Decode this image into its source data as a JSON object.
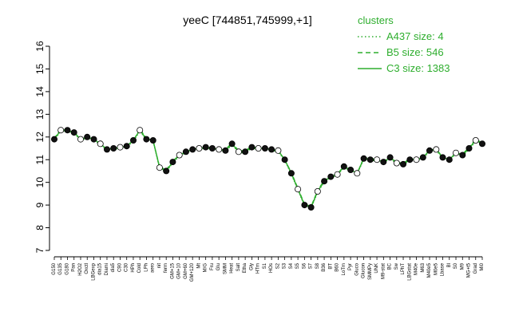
{
  "chart_data": {
    "type": "line",
    "title": "yeeC [744851,745999,+1]",
    "xlabel": "",
    "ylabel": "",
    "ylim": [
      7,
      16
    ],
    "yticks": [
      7,
      8,
      9,
      10,
      11,
      12,
      13,
      14,
      15,
      16
    ],
    "grid": false,
    "legend": {
      "title": "clusters",
      "placement": "top-right",
      "entries": [
        {
          "label": "A437 size: 4",
          "style": "dotted"
        },
        {
          "label": "B5 size: 546",
          "style": "dashed"
        },
        {
          "label": "C3 size: 1383",
          "style": "solid"
        }
      ]
    },
    "x_tick_labels": [
      "G150",
      "G135",
      "G180",
      "Pan",
      "H2O2",
      "Oxctl",
      "LBGexp",
      "dia15",
      "Diami",
      "dia5",
      "C90",
      "C30",
      "HPh",
      "Cold",
      "LPh",
      "aero",
      "nit",
      "ferm",
      "GM+15",
      "GM+10",
      "GM+60",
      "GM+120",
      "Mt",
      "M/G",
      "Fru",
      "Glu",
      "SMM",
      "Heat",
      "Salt",
      "Etha",
      "Gly",
      "HTm",
      "S1",
      "HOs",
      "S2",
      "S3",
      "S4",
      "S5",
      "S6",
      "S7",
      "S8",
      "B36",
      "BT",
      "B60",
      "LoTm",
      "Pyr",
      "Gluco",
      "Glucon",
      "SMMPy",
      "UNK",
      "M9-stat",
      "BC",
      "Sw",
      "LPhT",
      "LBGstat",
      "M40e",
      "M63",
      "M40e5",
      "M0e5",
      "Lbase",
      "Bl",
      "S0",
      "M9",
      "MG+t5",
      "Grad",
      "Mi0"
    ],
    "series": [
      {
        "style": "solid",
        "values": [
          11.9,
          12.3,
          12.3,
          12.2,
          11.9,
          12.0,
          11.9,
          11.7,
          11.45,
          11.5,
          11.55,
          11.6,
          11.85,
          12.3,
          11.9,
          11.85,
          10.65,
          10.5,
          10.9,
          11.2,
          11.35,
          11.45,
          11.5,
          11.55,
          11.5,
          11.45,
          11.4,
          11.7,
          11.35,
          11.35,
          11.55,
          11.5,
          11.5,
          11.45,
          11.4,
          11.0,
          10.4,
          9.7,
          9.0,
          8.9,
          9.6,
          10.05,
          10.25,
          10.35,
          10.7,
          10.55,
          10.4,
          11.05,
          11.0,
          11.0,
          10.9,
          11.1,
          10.85,
          10.8,
          11.0,
          11.0,
          11.1,
          11.4,
          11.45,
          11.1,
          11.0,
          11.3,
          11.2,
          11.5,
          11.85,
          11.7
        ]
      },
      {
        "style": "dashed",
        "values": [
          11.95,
          12.35,
          12.3,
          12.2,
          11.95,
          12.05,
          11.9,
          11.7,
          11.45,
          11.5,
          11.6,
          11.6,
          11.85,
          12.35,
          11.95,
          11.85,
          10.7,
          10.55,
          10.95,
          11.2,
          11.35,
          11.45,
          11.55,
          11.6,
          11.5,
          11.45,
          11.45,
          11.75,
          11.4,
          11.4,
          11.6,
          11.5,
          11.5,
          11.45,
          11.4,
          11.0,
          10.45,
          9.75,
          9.05,
          8.95,
          9.65,
          10.1,
          10.3,
          10.4,
          10.7,
          10.55,
          10.4,
          11.1,
          11.05,
          11.05,
          10.95,
          11.1,
          10.9,
          10.85,
          11.05,
          11.0,
          11.1,
          11.45,
          11.45,
          11.15,
          11.05,
          11.3,
          11.25,
          11.55,
          11.9,
          11.75
        ]
      },
      {
        "style": "dotted",
        "values": [
          11.85,
          12.25,
          12.25,
          12.15,
          11.85,
          11.95,
          11.85,
          11.65,
          11.4,
          11.45,
          11.5,
          11.55,
          11.8,
          12.25,
          11.85,
          11.8,
          10.6,
          10.45,
          10.85,
          11.15,
          11.3,
          11.4,
          11.45,
          11.5,
          11.45,
          11.4,
          11.35,
          11.65,
          11.3,
          11.3,
          11.5,
          11.45,
          11.45,
          11.4,
          11.35,
          10.95,
          10.35,
          9.65,
          8.95,
          8.85,
          9.55,
          10.0,
          10.2,
          10.3,
          10.65,
          10.5,
          10.35,
          11.0,
          10.95,
          10.95,
          10.85,
          11.05,
          10.8,
          10.75,
          10.95,
          10.95,
          11.05,
          11.35,
          11.4,
          11.05,
          10.95,
          11.25,
          11.15,
          11.45,
          11.8,
          11.65
        ]
      }
    ]
  },
  "colors": {
    "series": "#2eae2e",
    "point_fill": "#111111",
    "point_stroke": "#000000",
    "axis": "#000000"
  }
}
